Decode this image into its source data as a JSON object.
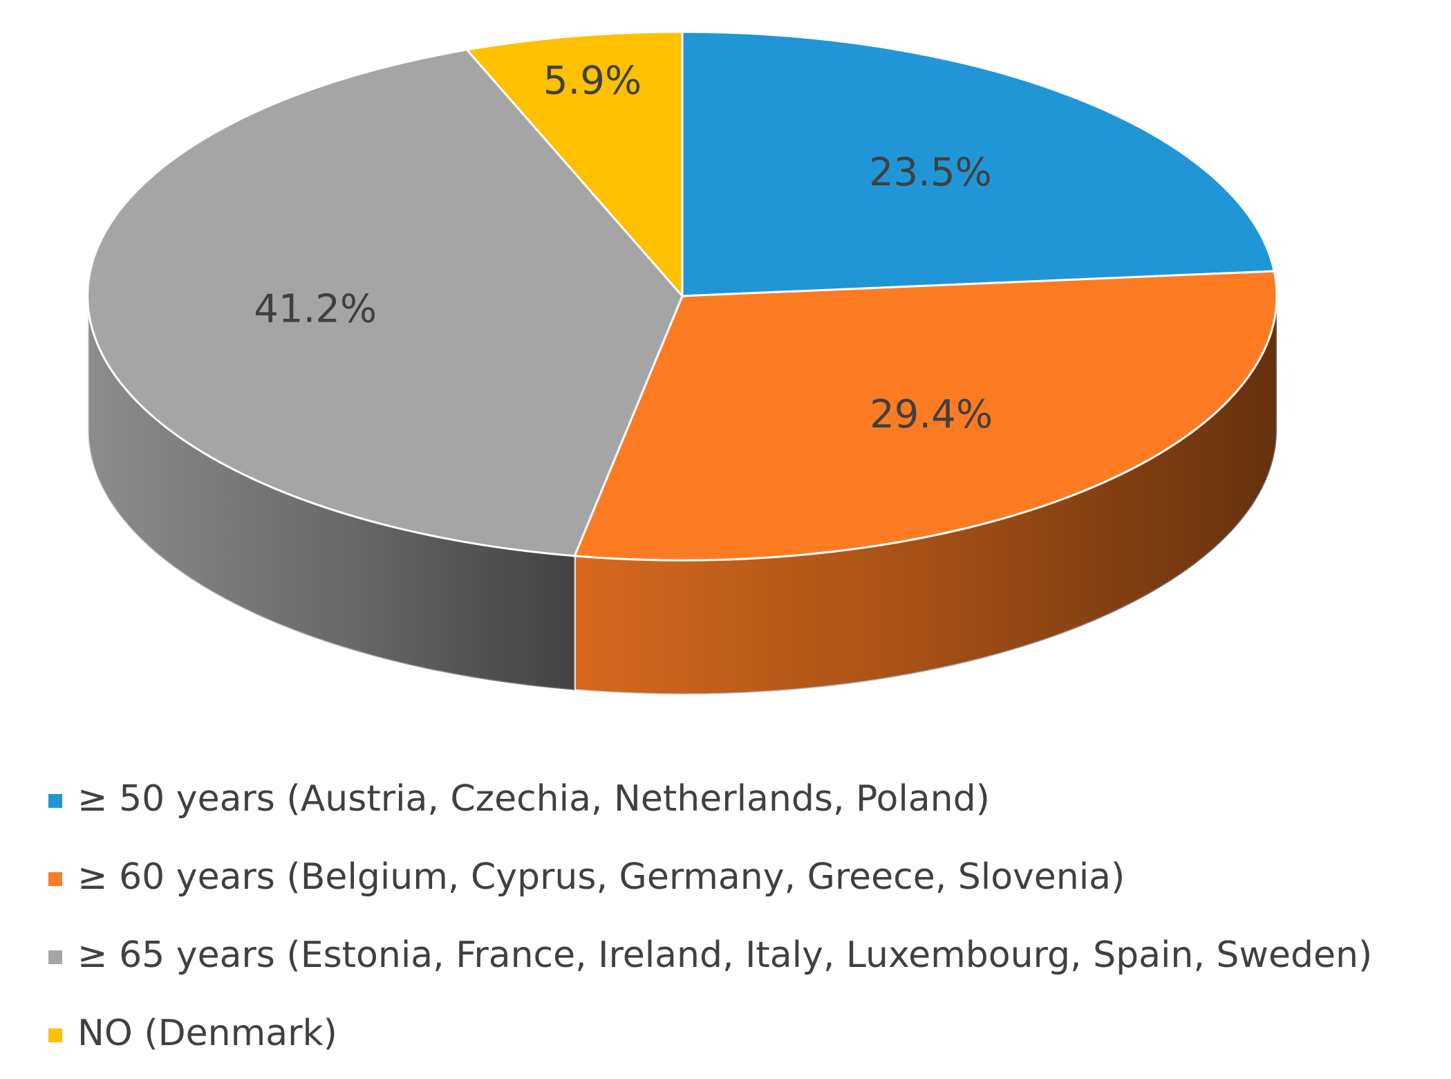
{
  "chart_data": {
    "type": "pie",
    "three_d": true,
    "categories": [
      "≥ 50 years (Austria, Czechia, Netherlands, Poland)",
      "≥ 60 years (Belgium, Cyprus, Germany, Greece, Slovenia)",
      "≥ 65 years  (Estonia, France, Ireland, Italy, Luxembourg, Spain, Sweden)",
      "NO (Denmark)"
    ],
    "values": [
      23.5,
      29.4,
      41.2,
      5.9
    ],
    "value_labels": [
      "23.5%",
      "29.4%",
      "41.2%",
      "5.9%"
    ],
    "colors": [
      "#2196d6",
      "#fd7b23",
      "#a5a5a5",
      "#ffc000"
    ],
    "legend": "bottom"
  }
}
